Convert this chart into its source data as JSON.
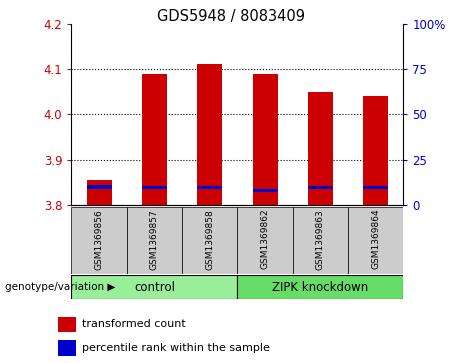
{
  "title": "GDS5948 / 8083409",
  "samples": [
    "GSM1369856",
    "GSM1369857",
    "GSM1369858",
    "GSM1369862",
    "GSM1369863",
    "GSM1369864"
  ],
  "red_values": [
    3.855,
    4.09,
    4.11,
    4.09,
    4.05,
    4.04
  ],
  "blue_values": [
    3.84,
    3.838,
    3.838,
    3.833,
    3.838,
    3.838
  ],
  "ymin": 3.8,
  "ymax": 4.2,
  "y_ticks_left": [
    3.8,
    3.9,
    4.0,
    4.1,
    4.2
  ],
  "y_ticks_right": [
    0,
    25,
    50,
    75,
    100
  ],
  "bar_width": 0.45,
  "red_color": "#cc0000",
  "blue_color": "#0000cc",
  "group_colors_control": "#99ee99",
  "group_colors_zipk": "#66dd66",
  "group_label": "genotype/variation",
  "legend_red": "transformed count",
  "legend_blue": "percentile rank within the sample",
  "sample_box_color": "#cccccc",
  "plot_bg": "#ffffff",
  "left_tick_color": "#cc0000",
  "right_tick_color": "#0000cc",
  "grid_color": "#000000",
  "grid_yticks": [
    3.9,
    4.0,
    4.1
  ]
}
